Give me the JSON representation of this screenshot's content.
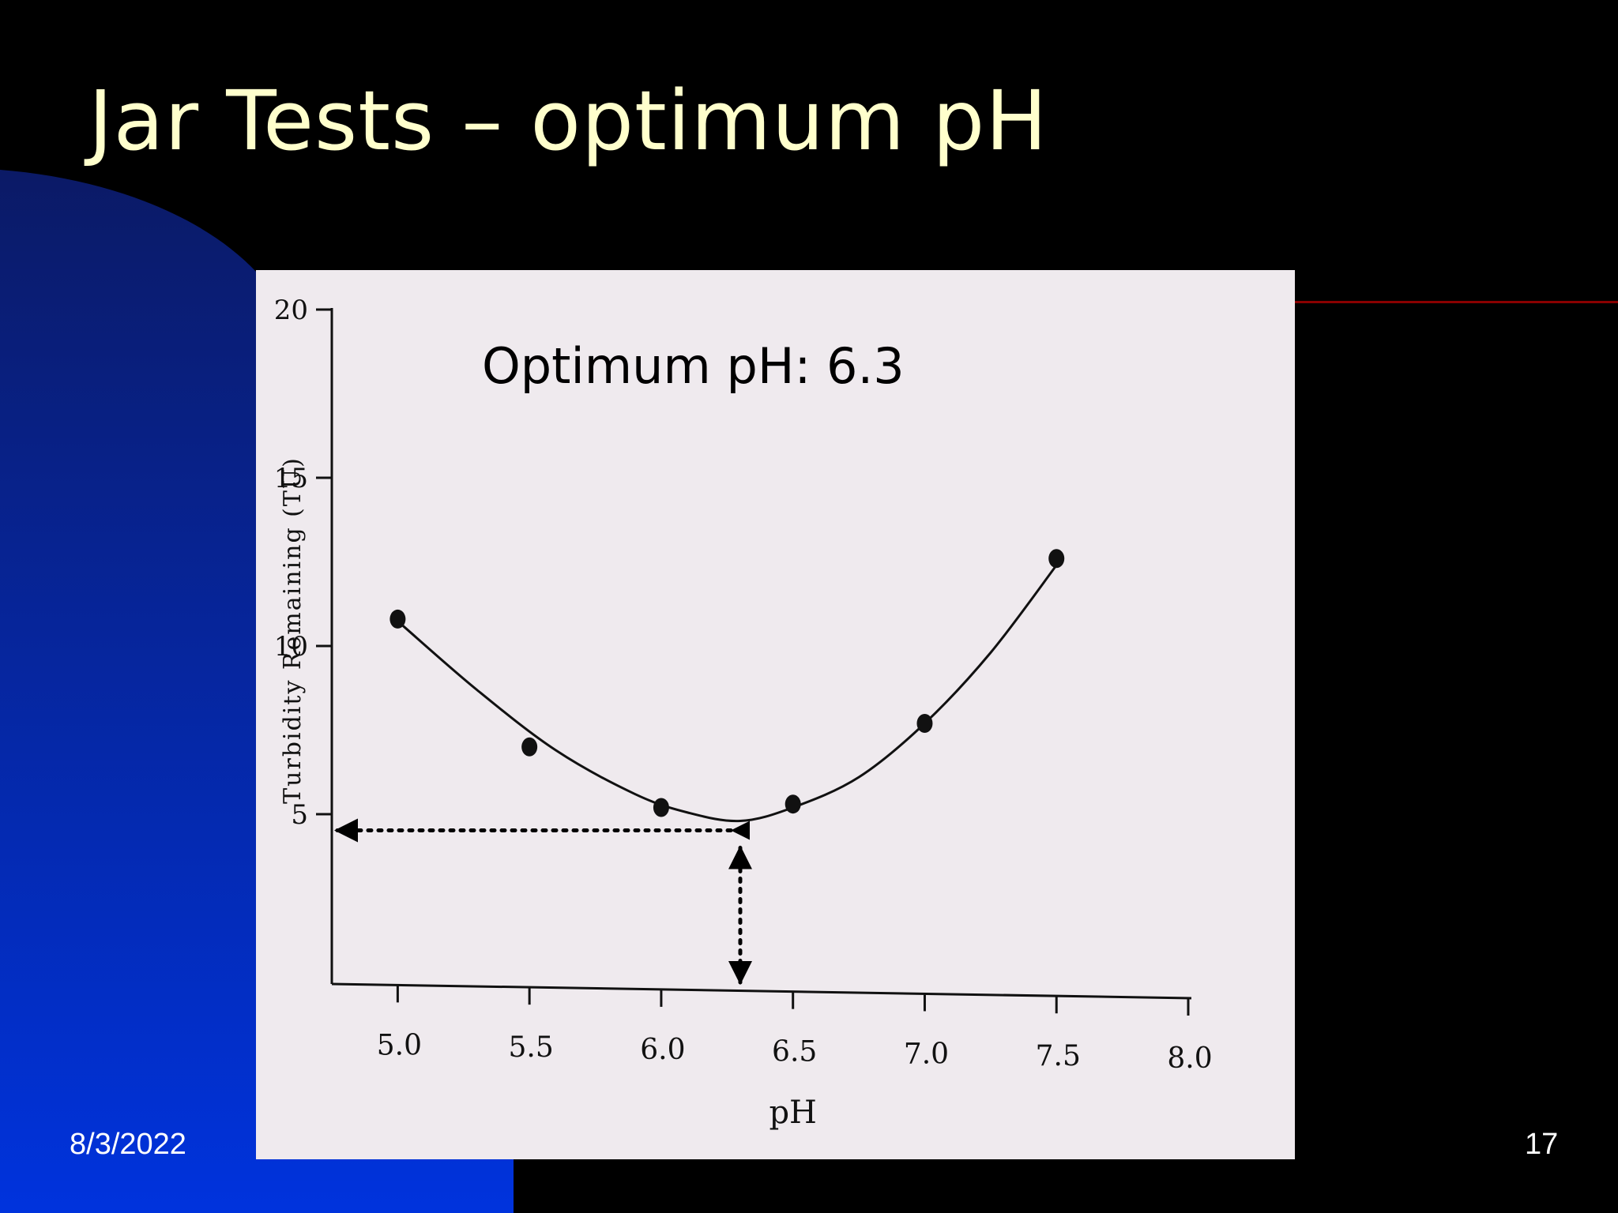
{
  "slide": {
    "title": "Jar Tests – optimum pH",
    "date": "8/3/2022",
    "page_number": "17"
  },
  "colors": {
    "background": "#000000",
    "blue_gradient_top": "#0b1a66",
    "blue_gradient_bottom": "#0033dd",
    "title": "#ffffcc",
    "accent_line": "#8a0000",
    "chart_paper": "#efeaee",
    "ink": "#111111"
  },
  "chart_data": {
    "type": "line",
    "xlabel": "pH",
    "ylabel": "Turbidity Remaining (TU)",
    "xlim": [
      5.0,
      8.0
    ],
    "ylim": [
      0,
      20
    ],
    "x_ticks": [
      "5.0",
      "5.5",
      "6.0",
      "6.5",
      "7.0",
      "7.5",
      "8.0"
    ],
    "y_ticks": [
      "5",
      "10",
      "15",
      "20"
    ],
    "points": [
      {
        "x": 5.0,
        "y": 10.8
      },
      {
        "x": 5.5,
        "y": 7.0
      },
      {
        "x": 6.0,
        "y": 5.2
      },
      {
        "x": 6.5,
        "y": 5.3
      },
      {
        "x": 7.0,
        "y": 7.7
      },
      {
        "x": 7.5,
        "y": 12.6
      }
    ],
    "curve": [
      {
        "x": 5.02,
        "y": 10.6
      },
      {
        "x": 5.3,
        "y": 8.7
      },
      {
        "x": 5.6,
        "y": 6.9
      },
      {
        "x": 5.9,
        "y": 5.6
      },
      {
        "x": 6.1,
        "y": 5.05
      },
      {
        "x": 6.3,
        "y": 4.8
      },
      {
        "x": 6.5,
        "y": 5.2
      },
      {
        "x": 6.75,
        "y": 6.1
      },
      {
        "x": 7.0,
        "y": 7.7
      },
      {
        "x": 7.25,
        "y": 9.8
      },
      {
        "x": 7.5,
        "y": 12.4
      }
    ],
    "annotation": {
      "text": "Optimum pH: 6.3",
      "optimum_x": 6.3,
      "optimum_y": 4.8
    },
    "grid": false,
    "legend": "none"
  }
}
